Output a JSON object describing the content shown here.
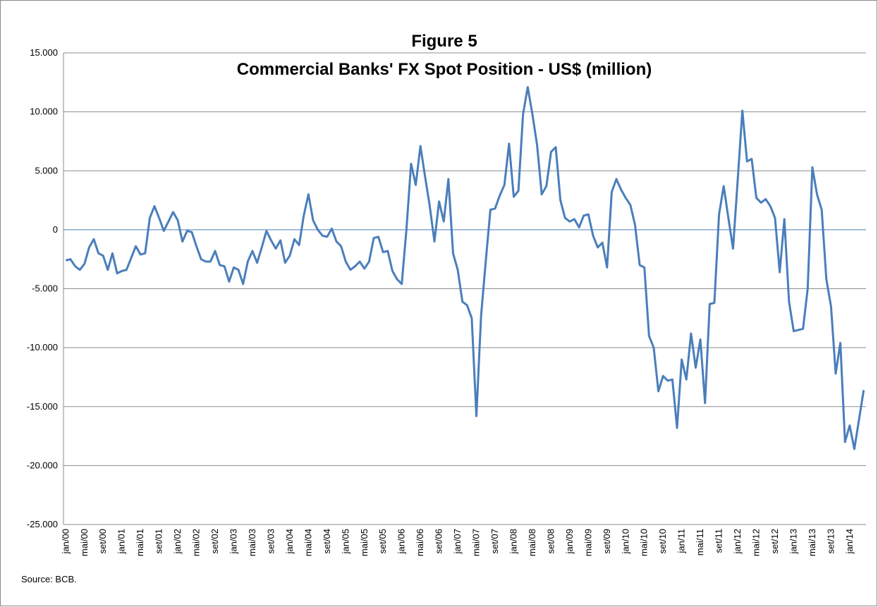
{
  "chart_data": {
    "type": "line",
    "title": "Figure 5",
    "subtitle": "Commercial Banks' FX Spot Position - US$ (million)",
    "source": "Source: BCB.",
    "color": "#4a7ebb",
    "ylim": [
      -25000,
      15000
    ],
    "yticks": [
      {
        "value": -25000,
        "label": "-25.000"
      },
      {
        "value": -20000,
        "label": "-20.000"
      },
      {
        "value": -15000,
        "label": "-15.000"
      },
      {
        "value": -10000,
        "label": "-10.000"
      },
      {
        "value": -5000,
        "label": "-5.000"
      },
      0,
      {
        "value": 5000,
        "label": "5.000"
      },
      {
        "value": 10000,
        "label": "10.000"
      },
      {
        "value": 15000,
        "label": "15.000"
      }
    ],
    "grid": true,
    "categories": [
      "jan/00",
      null,
      null,
      null,
      "mai/00",
      null,
      null,
      null,
      "set/00",
      null,
      null,
      null,
      "jan/01",
      null,
      null,
      null,
      "mai/01",
      null,
      null,
      null,
      "set/01",
      null,
      null,
      null,
      "jan/02",
      null,
      null,
      null,
      "mai/02",
      null,
      null,
      null,
      "set/02",
      null,
      null,
      null,
      "jan/03",
      null,
      null,
      null,
      "mai/03",
      null,
      null,
      null,
      "set/03",
      null,
      null,
      null,
      "jan/04",
      null,
      null,
      null,
      "mai/04",
      null,
      null,
      null,
      "set/04",
      null,
      null,
      null,
      "jan/05",
      null,
      null,
      null,
      "mai/05",
      null,
      null,
      null,
      "set/05",
      null,
      null,
      null,
      "jan/06",
      null,
      null,
      null,
      "mai/06",
      null,
      null,
      null,
      "set/06",
      null,
      null,
      null,
      "jan/07",
      null,
      null,
      null,
      "mai/07",
      null,
      null,
      null,
      "set/07",
      null,
      null,
      null,
      "jan/08",
      null,
      null,
      null,
      "mai/08",
      null,
      null,
      null,
      "set/08",
      null,
      null,
      null,
      "jan/09",
      null,
      null,
      null,
      "mai/09",
      null,
      null,
      null,
      "set/09",
      null,
      null,
      null,
      "jan/10",
      null,
      null,
      null,
      "mai/10",
      null,
      null,
      null,
      "set/10",
      null,
      null,
      null,
      "jan/11",
      null,
      null,
      null,
      "mai/11",
      null,
      null,
      null,
      "set/11",
      null,
      null,
      null,
      "jan/12",
      null,
      null,
      null,
      "mai/12",
      null,
      null,
      null,
      "set/12",
      null,
      null,
      null,
      "jan/13",
      null,
      null,
      null,
      "mai/13",
      null,
      null,
      null,
      "set/13",
      null,
      null,
      null,
      "jan/14",
      null,
      null,
      null
    ],
    "values": [
      -2600,
      -2500,
      -3100,
      -3400,
      -2900,
      -1500,
      -800,
      -2000,
      -2200,
      -3400,
      -2000,
      -3700,
      -3500,
      -3400,
      -2400,
      -1400,
      -2100,
      -2000,
      1000,
      2000,
      1000,
      -100,
      700,
      1500,
      800,
      -1000,
      -100,
      -200,
      -1400,
      -2500,
      -2700,
      -2700,
      -1800,
      -3000,
      -3100,
      -4400,
      -3200,
      -3400,
      -4600,
      -2700,
      -1800,
      -2800,
      -1500,
      -100,
      -900,
      -1600,
      -900,
      -2800,
      -2200,
      -800,
      -1300,
      1200,
      3000,
      800,
      0,
      -500,
      -600,
      100,
      -1000,
      -1400,
      -2700,
      -3400,
      -3100,
      -2700,
      -3300,
      -2700,
      -700,
      -600,
      -1900,
      -1800,
      -3500,
      -4200,
      -4600,
      0,
      5600,
      3800,
      7100,
      4500,
      2000,
      -1000,
      2400,
      700,
      4300,
      -2000,
      -3400,
      -6100,
      -6400,
      -7500,
      -15800,
      -7300,
      -2700,
      1700,
      1800,
      2900,
      3800,
      7300,
      2800,
      3300,
      9800,
      12100,
      9800,
      7200,
      3000,
      3700,
      6600,
      7000,
      2500,
      1000,
      700,
      900,
      200,
      1200,
      1300,
      -500,
      -1500,
      -1100,
      -3200,
      3200,
      4300,
      3400,
      2700,
      2100,
      400,
      -3000,
      -3200,
      -9000,
      -10000,
      -13700,
      -12400,
      -12800,
      -12700,
      -16800,
      -11000,
      -12700,
      -8800,
      -11700,
      -9300,
      -14700,
      -6300,
      -6200,
      1300,
      3700,
      1000,
      -1600,
      4200,
      10100,
      5800,
      6000,
      2700,
      2300,
      2600,
      2000,
      1000,
      -3600,
      900,
      -6100,
      -8600,
      -8500,
      -8400,
      -5000,
      5300,
      3000,
      1700,
      -4200,
      -6500,
      -12200,
      -9600,
      -18000,
      -16600,
      -18600,
      -16100,
      -13600
    ]
  }
}
